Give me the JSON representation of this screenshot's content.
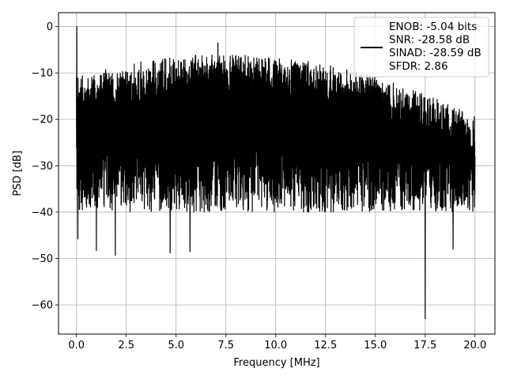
{
  "chart_data": {
    "type": "line",
    "title": "",
    "xlabel": "Frequency [MHz]",
    "ylabel": "PSD [dB]",
    "xlim": [
      -0.9,
      21.0
    ],
    "ylim": [
      -66.3,
      3.0
    ],
    "xticks": [
      0.0,
      2.5,
      5.0,
      7.5,
      10.0,
      12.5,
      15.0,
      17.5,
      20.0
    ],
    "xtick_labels": [
      "0.0",
      "2.5",
      "5.0",
      "7.5",
      "10.0",
      "12.5",
      "15.0",
      "17.5",
      "20.0"
    ],
    "yticks": [
      0,
      -10,
      -20,
      -30,
      -40,
      -50,
      -60
    ],
    "ytick_labels": [
      "0",
      "−10",
      "−20",
      "−30",
      "−40",
      "−50",
      "−60"
    ],
    "grid": true,
    "legend_position": "top-right",
    "legend_lines": [
      "ENOB: -5.04 bits",
      "SNR: -28.58 dB",
      "SINAD: -28.59 dB",
      "SFDR: 2.86"
    ],
    "series": [
      {
        "color": "#000000",
        "description": "noise-like power spectral density, dense oscillation between roughly -40 and -5 dB",
        "peaks": [
          {
            "x": 0.02,
            "y": 0.0
          },
          {
            "x": 0.07,
            "y": -45.8
          },
          {
            "x": 1.0,
            "y": -48.3
          },
          {
            "x": 1.95,
            "y": -49.3
          },
          {
            "x": 4.7,
            "y": -48.8
          },
          {
            "x": 5.7,
            "y": -48.5
          },
          {
            "x": 7.1,
            "y": -3.5
          },
          {
            "x": 17.5,
            "y": -63.0
          },
          {
            "x": 18.9,
            "y": -48.0
          }
        ],
        "x_range": [
          0.0,
          20.0
        ]
      }
    ]
  }
}
